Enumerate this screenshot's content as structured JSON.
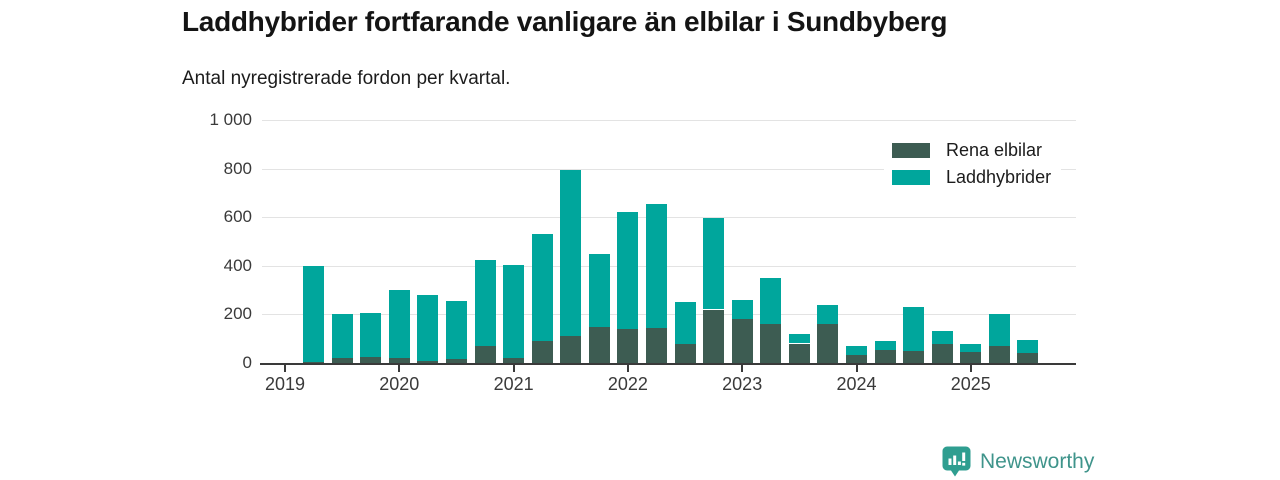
{
  "header": {
    "title": "Laddhybrider fortfarande vanligare än elbilar i Sundbyberg",
    "subtitle": "Antal nyregistrerade fordon per kvartal."
  },
  "legend": {
    "items": [
      {
        "label": "Rena elbilar",
        "color": "#3d5c52"
      },
      {
        "label": "Laddhybrider",
        "color": "#00a69c"
      }
    ]
  },
  "chart_data": {
    "type": "bar",
    "stacked": true,
    "title": "Laddhybrider fortfarande vanligare än elbilar i Sundbyberg",
    "subtitle": "Antal nyregistrerade fordon per kvartal.",
    "ylim": [
      0,
      1000
    ],
    "y_ticks": [
      {
        "value": 0,
        "label": "0"
      },
      {
        "value": 200,
        "label": "200"
      },
      {
        "value": 400,
        "label": "400"
      },
      {
        "value": 600,
        "label": "600"
      },
      {
        "value": 800,
        "label": "800"
      },
      {
        "value": 1000,
        "label": "1 000"
      }
    ],
    "x_tick_labels": [
      "2019",
      "2020",
      "2021",
      "2022",
      "2023",
      "2024",
      "2025"
    ],
    "grid": "horizontal",
    "legend_position": "top-right-inside",
    "categories": [
      "2019 Q2",
      "2019 Q3",
      "2019 Q4",
      "2020 Q1",
      "2020 Q2",
      "2020 Q3",
      "2020 Q4",
      "2021 Q1",
      "2021 Q2",
      "2021 Q3",
      "2021 Q4",
      "2022 Q1",
      "2022 Q2",
      "2022 Q3",
      "2022 Q4",
      "2023 Q1",
      "2023 Q2",
      "2023 Q3",
      "2023 Q4",
      "2024 Q1",
      "2024 Q2",
      "2024 Q3",
      "2024 Q4",
      "2025 Q1",
      "2025 Q2",
      "2025 Q3"
    ],
    "series": [
      {
        "name": "Rena elbilar",
        "color": "#3d5c52",
        "values": [
          5,
          20,
          25,
          20,
          10,
          15,
          70,
          20,
          90,
          110,
          150,
          140,
          145,
          80,
          220,
          180,
          160,
          80,
          160,
          35,
          55,
          50,
          80,
          45,
          70,
          40
        ]
      },
      {
        "name": "Laddhybrider",
        "color": "#00a69c",
        "values": [
          395,
          180,
          180,
          280,
          270,
          240,
          355,
          385,
          440,
          685,
          300,
          480,
          510,
          170,
          375,
          80,
          190,
          40,
          80,
          35,
          35,
          180,
          50,
          35,
          130,
          55
        ]
      }
    ]
  },
  "footer": {
    "brand": "Newsworthy",
    "brand_color": "#3f948b",
    "brand_icon": "newsworthy-bar-chart-bubble-icon",
    "icon_color": "#2f9e90"
  }
}
